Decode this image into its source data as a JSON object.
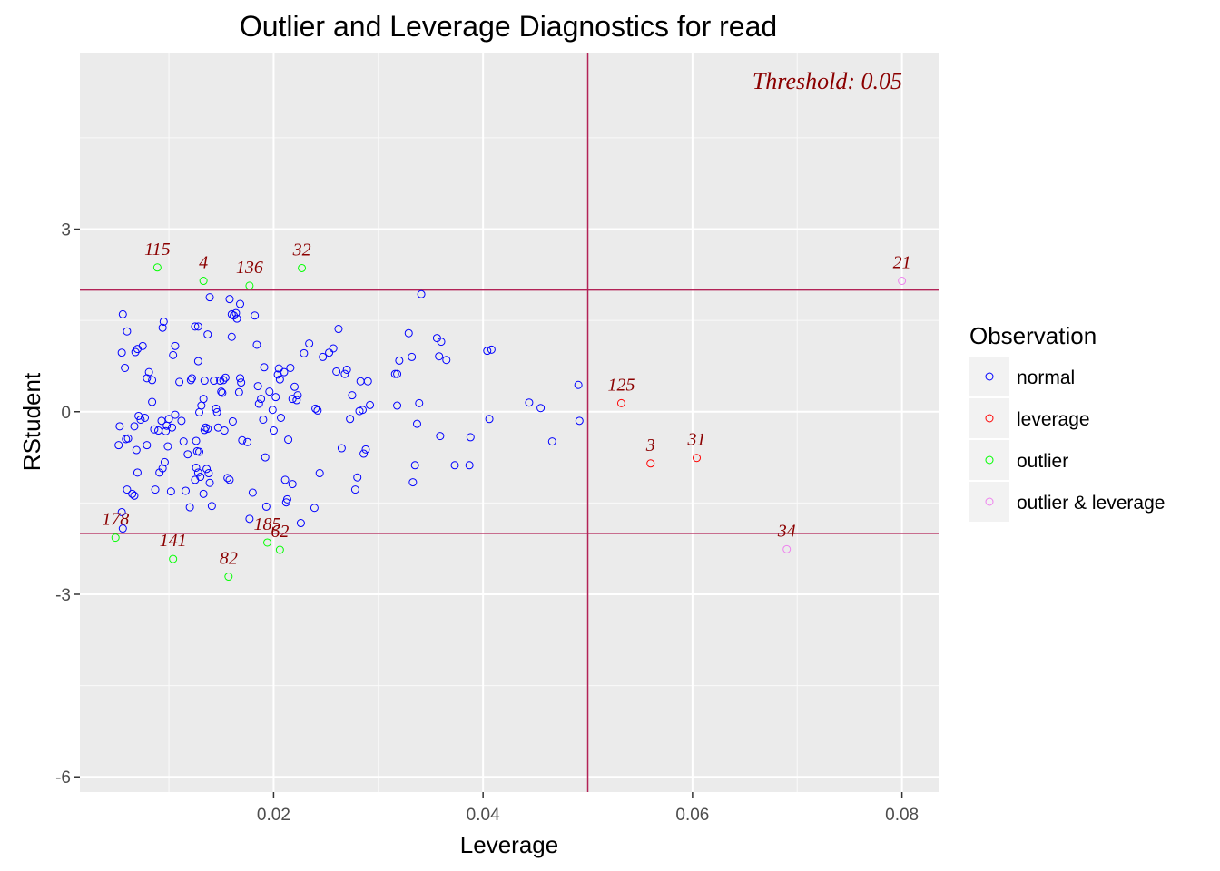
{
  "chart_data": {
    "type": "scatter",
    "title": "Outlier and Leverage Diagnostics for read",
    "xlabel": "Leverage",
    "ylabel": "RStudent",
    "xlim": [
      0.0015,
      0.0835
    ],
    "ylim": [
      -6.25,
      5.9
    ],
    "x_ticks": [
      {
        "value": 0.02,
        "label": "0.02"
      },
      {
        "value": 0.04,
        "label": "0.04"
      },
      {
        "value": 0.06,
        "label": "0.06"
      },
      {
        "value": 0.08,
        "label": "0.08"
      }
    ],
    "y_ticks": [
      {
        "value": -6,
        "label": "-6"
      },
      {
        "value": -3,
        "label": "-3"
      },
      {
        "value": 0,
        "label": "0"
      },
      {
        "value": 3,
        "label": "3"
      }
    ],
    "grid": true,
    "threshold_text": "Threshold: 0.05",
    "reference_lines": {
      "vertical": [
        0.05
      ],
      "horizontal": [
        2,
        -2
      ]
    },
    "legend": {
      "title": "Observation",
      "position": "right",
      "entries": [
        {
          "key": "normal",
          "label": "normal",
          "color": "#0000ff"
        },
        {
          "key": "leverage",
          "label": "leverage",
          "color": "#ff0000"
        },
        {
          "key": "outlier",
          "label": "outlier",
          "color": "#00ff00"
        },
        {
          "key": "outlier_leverage",
          "label": "outlier & leverage",
          "color": "#ee82ee"
        }
      ]
    },
    "labeled_points": [
      {
        "label": "115",
        "x": 0.0089,
        "y": 2.37,
        "category": "outlier"
      },
      {
        "label": "4",
        "x": 0.0133,
        "y": 2.15,
        "category": "outlier"
      },
      {
        "label": "136",
        "x": 0.0177,
        "y": 2.07,
        "category": "outlier"
      },
      {
        "label": "32",
        "x": 0.0227,
        "y": 2.36,
        "category": "outlier"
      },
      {
        "label": "178",
        "x": 0.0049,
        "y": -2.07,
        "category": "outlier"
      },
      {
        "label": "141",
        "x": 0.0104,
        "y": -2.42,
        "category": "outlier"
      },
      {
        "label": "82",
        "x": 0.0157,
        "y": -2.71,
        "category": "outlier"
      },
      {
        "label": "185",
        "x": 0.0194,
        "y": -2.15,
        "category": "outlier"
      },
      {
        "label": "62",
        "x": 0.0206,
        "y": -2.27,
        "category": "outlier"
      },
      {
        "label": "125",
        "x": 0.0532,
        "y": 0.14,
        "category": "leverage"
      },
      {
        "label": "3",
        "x": 0.056,
        "y": -0.85,
        "category": "leverage"
      },
      {
        "label": "31",
        "x": 0.0604,
        "y": -0.76,
        "category": "leverage"
      },
      {
        "label": "21",
        "x": 0.08,
        "y": 2.15,
        "category": "outlier_leverage"
      },
      {
        "label": "34",
        "x": 0.069,
        "y": -2.26,
        "category": "outlier_leverage"
      }
    ],
    "normal_points": [
      [
        0.0056,
        1.6
      ],
      [
        0.0055,
        0.97
      ],
      [
        0.006,
        1.32
      ],
      [
        0.0058,
        0.72
      ],
      [
        0.0053,
        -0.24
      ],
      [
        0.0052,
        -0.55
      ],
      [
        0.0059,
        -0.45
      ],
      [
        0.0061,
        -0.44
      ],
      [
        0.006,
        -1.28
      ],
      [
        0.0055,
        -1.65
      ],
      [
        0.0056,
        -1.92
      ],
      [
        0.0068,
        0.98
      ],
      [
        0.007,
        1.03
      ],
      [
        0.0075,
        1.08
      ],
      [
        0.0079,
        0.55
      ],
      [
        0.0081,
        0.65
      ],
      [
        0.0084,
        0.52
      ],
      [
        0.0071,
        -0.07
      ],
      [
        0.0073,
        -0.13
      ],
      [
        0.0077,
        -0.1
      ],
      [
        0.0067,
        -0.24
      ],
      [
        0.0069,
        -0.63
      ],
      [
        0.0079,
        -0.55
      ],
      [
        0.007,
        -1.0
      ],
      [
        0.0067,
        -1.38
      ],
      [
        0.0065,
        -1.35
      ],
      [
        0.0084,
        0.16
      ],
      [
        0.0086,
        -0.29
      ],
      [
        0.009,
        -0.31
      ],
      [
        0.0093,
        -0.15
      ],
      [
        0.0091,
        -1.0
      ],
      [
        0.0087,
        -1.28
      ],
      [
        0.0094,
        1.38
      ],
      [
        0.0095,
        1.48
      ],
      [
        0.01,
        -0.12
      ],
      [
        0.0098,
        -0.23
      ],
      [
        0.0097,
        -0.32
      ],
      [
        0.0099,
        -0.57
      ],
      [
        0.0096,
        -0.83
      ],
      [
        0.0094,
        -0.93
      ],
      [
        0.0103,
        -0.26
      ],
      [
        0.0102,
        -1.31
      ],
      [
        0.0104,
        0.93
      ],
      [
        0.0106,
        1.08
      ],
      [
        0.0106,
        -0.05
      ],
      [
        0.011,
        0.49
      ],
      [
        0.0112,
        -0.15
      ],
      [
        0.0114,
        -0.49
      ],
      [
        0.0118,
        -0.7
      ],
      [
        0.0116,
        -1.3
      ],
      [
        0.012,
        -1.57
      ],
      [
        0.0121,
        0.52
      ],
      [
        0.0122,
        0.55
      ],
      [
        0.0125,
        1.4
      ],
      [
        0.0128,
        1.4
      ],
      [
        0.0128,
        0.83
      ],
      [
        0.0129,
        -0.01
      ],
      [
        0.0126,
        -0.48
      ],
      [
        0.0127,
        -0.65
      ],
      [
        0.0129,
        -0.66
      ],
      [
        0.0126,
        -0.92
      ],
      [
        0.0128,
        -1.0
      ],
      [
        0.0125,
        -1.12
      ],
      [
        0.013,
        -1.07
      ],
      [
        0.0131,
        0.1
      ],
      [
        0.0134,
        0.51
      ],
      [
        0.0137,
        1.27
      ],
      [
        0.0139,
        1.88
      ],
      [
        0.0133,
        0.21
      ],
      [
        0.0135,
        -0.26
      ],
      [
        0.0137,
        -0.28
      ],
      [
        0.0134,
        -0.3
      ],
      [
        0.0136,
        -0.94
      ],
      [
        0.0138,
        -1.01
      ],
      [
        0.0139,
        -1.17
      ],
      [
        0.0133,
        -1.35
      ],
      [
        0.0141,
        -1.55
      ],
      [
        0.0143,
        0.51
      ],
      [
        0.0145,
        0.05
      ],
      [
        0.0146,
        -0.01
      ],
      [
        0.0147,
        -0.26
      ],
      [
        0.0149,
        0.51
      ],
      [
        0.015,
        0.33
      ],
      [
        0.0151,
        0.31
      ],
      [
        0.0152,
        0.52
      ],
      [
        0.0153,
        -0.31
      ],
      [
        0.0154,
        0.56
      ],
      [
        0.0156,
        -1.09
      ],
      [
        0.0158,
        -1.12
      ],
      [
        0.0158,
        1.85
      ],
      [
        0.016,
        1.6
      ],
      [
        0.0162,
        1.58
      ],
      [
        0.016,
        1.23
      ],
      [
        0.0161,
        -0.16
      ],
      [
        0.0164,
        1.62
      ],
      [
        0.0165,
        1.53
      ],
      [
        0.0168,
        0.55
      ],
      [
        0.0169,
        0.48
      ],
      [
        0.0167,
        0.32
      ],
      [
        0.017,
        -0.47
      ],
      [
        0.0168,
        1.77
      ],
      [
        0.0175,
        -0.5
      ],
      [
        0.0177,
        -1.76
      ],
      [
        0.018,
        -1.33
      ],
      [
        0.0182,
        1.58
      ],
      [
        0.0184,
        1.1
      ],
      [
        0.0185,
        0.42
      ],
      [
        0.0186,
        0.13
      ],
      [
        0.0188,
        0.21
      ],
      [
        0.019,
        -0.13
      ],
      [
        0.0191,
        0.73
      ],
      [
        0.0192,
        -0.75
      ],
      [
        0.0193,
        -1.56
      ],
      [
        0.0196,
        0.33
      ],
      [
        0.0199,
        0.03
      ],
      [
        0.02,
        -0.31
      ],
      [
        0.0202,
        0.24
      ],
      [
        0.0204,
        0.61
      ],
      [
        0.0205,
        0.71
      ],
      [
        0.0206,
        0.53
      ],
      [
        0.0207,
        -0.1
      ],
      [
        0.021,
        0.65
      ],
      [
        0.0211,
        -1.12
      ],
      [
        0.0212,
        -1.49
      ],
      [
        0.0213,
        -1.44
      ],
      [
        0.0214,
        -0.46
      ],
      [
        0.0216,
        0.72
      ],
      [
        0.0218,
        0.21
      ],
      [
        0.0218,
        -1.19
      ],
      [
        0.022,
        0.41
      ],
      [
        0.0222,
        0.19
      ],
      [
        0.0223,
        0.27
      ],
      [
        0.0226,
        -1.83
      ],
      [
        0.0229,
        0.96
      ],
      [
        0.0234,
        1.12
      ],
      [
        0.024,
        0.05
      ],
      [
        0.0242,
        0.02
      ],
      [
        0.0239,
        -1.58
      ],
      [
        0.0244,
        -1.01
      ],
      [
        0.0247,
        0.9
      ],
      [
        0.0253,
        0.97
      ],
      [
        0.0257,
        1.04
      ],
      [
        0.026,
        0.66
      ],
      [
        0.0262,
        1.36
      ],
      [
        0.0265,
        -0.6
      ],
      [
        0.0268,
        0.62
      ],
      [
        0.027,
        0.69
      ],
      [
        0.0273,
        -0.12
      ],
      [
        0.0275,
        0.27
      ],
      [
        0.0278,
        -1.28
      ],
      [
        0.028,
        -1.08
      ],
      [
        0.0282,
        0.01
      ],
      [
        0.0283,
        0.5
      ],
      [
        0.0285,
        0.03
      ],
      [
        0.0286,
        -0.69
      ],
      [
        0.0288,
        -0.62
      ],
      [
        0.029,
        0.5
      ],
      [
        0.0292,
        0.11
      ],
      [
        0.0316,
        0.62
      ],
      [
        0.0318,
        0.62
      ],
      [
        0.032,
        0.84
      ],
      [
        0.0318,
        0.1
      ],
      [
        0.0329,
        1.29
      ],
      [
        0.0332,
        0.9
      ],
      [
        0.0333,
        -1.16
      ],
      [
        0.0335,
        -0.88
      ],
      [
        0.0337,
        -0.2
      ],
      [
        0.0339,
        0.14
      ],
      [
        0.0341,
        1.93
      ],
      [
        0.0356,
        1.21
      ],
      [
        0.0358,
        0.91
      ],
      [
        0.036,
        1.15
      ],
      [
        0.0359,
        -0.4
      ],
      [
        0.0365,
        0.85
      ],
      [
        0.0373,
        -0.88
      ],
      [
        0.0388,
        -0.42
      ],
      [
        0.0387,
        -0.88
      ],
      [
        0.0404,
        1.0
      ],
      [
        0.0408,
        1.02
      ],
      [
        0.0406,
        -0.12
      ],
      [
        0.0444,
        0.15
      ],
      [
        0.0455,
        0.06
      ],
      [
        0.0466,
        -0.49
      ],
      [
        0.0491,
        0.44
      ],
      [
        0.0492,
        -0.15
      ]
    ]
  }
}
